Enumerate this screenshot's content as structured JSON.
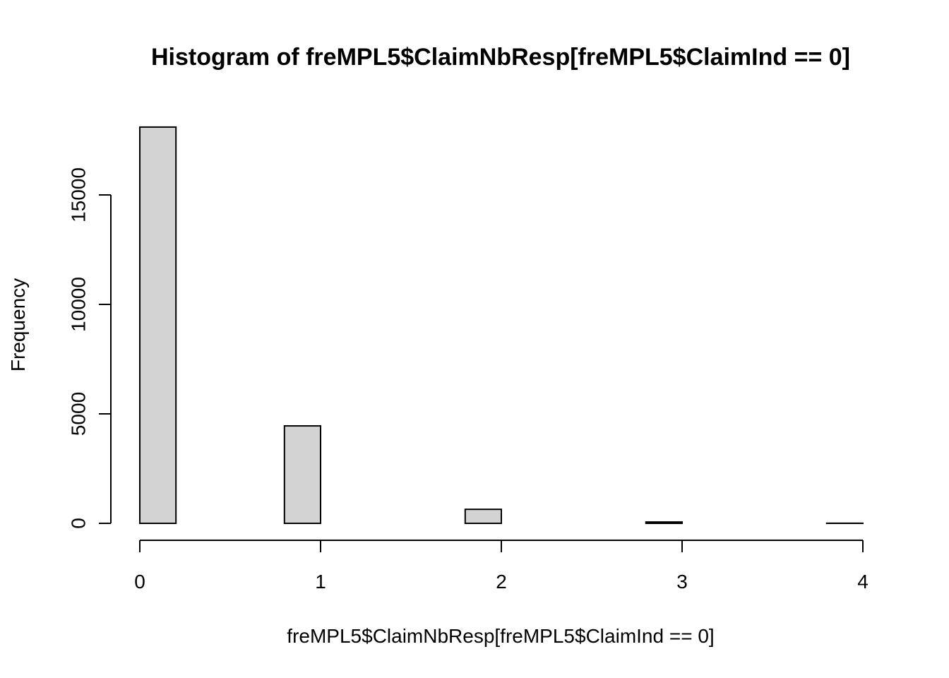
{
  "chart_data": {
    "type": "bar",
    "title": "Histogram of freMPL5$ClaimNbResp[freMPL5$ClaimInd == 0]",
    "xlabel": "freMPL5$ClaimNbResp[freMPL5$ClaimInd == 0]",
    "ylabel": "Frequency",
    "bins": [
      {
        "x0": 0.0,
        "x1": 0.2,
        "count": 18100
      },
      {
        "x0": 0.2,
        "x1": 0.4,
        "count": 0
      },
      {
        "x0": 0.4,
        "x1": 0.6,
        "count": 0
      },
      {
        "x0": 0.6,
        "x1": 0.8,
        "count": 0
      },
      {
        "x0": 0.8,
        "x1": 1.0,
        "count": 4450
      },
      {
        "x0": 1.0,
        "x1": 1.2,
        "count": 0
      },
      {
        "x0": 1.2,
        "x1": 1.4,
        "count": 0
      },
      {
        "x0": 1.4,
        "x1": 1.6,
        "count": 0
      },
      {
        "x0": 1.6,
        "x1": 1.8,
        "count": 0
      },
      {
        "x0": 1.8,
        "x1": 2.0,
        "count": 640
      },
      {
        "x0": 2.0,
        "x1": 2.2,
        "count": 0
      },
      {
        "x0": 2.2,
        "x1": 2.4,
        "count": 0
      },
      {
        "x0": 2.4,
        "x1": 2.6,
        "count": 0
      },
      {
        "x0": 2.6,
        "x1": 2.8,
        "count": 0
      },
      {
        "x0": 2.8,
        "x1": 3.0,
        "count": 60
      },
      {
        "x0": 3.0,
        "x1": 3.2,
        "count": 0
      },
      {
        "x0": 3.2,
        "x1": 3.4,
        "count": 0
      },
      {
        "x0": 3.4,
        "x1": 3.6,
        "count": 0
      },
      {
        "x0": 3.6,
        "x1": 3.8,
        "count": 0
      },
      {
        "x0": 3.8,
        "x1": 4.0,
        "count": 5
      }
    ],
    "xticks": [
      0,
      1,
      2,
      3,
      4
    ],
    "xtick_labels": [
      "0",
      "1",
      "2",
      "3",
      "4"
    ],
    "yticks": [
      0,
      5000,
      10000,
      15000
    ],
    "ytick_labels": [
      "0",
      "5000",
      "10000",
      "15000"
    ],
    "xlim": [
      0,
      4
    ],
    "ylim": [
      0,
      18100
    ],
    "grid": false,
    "bar_color": "#d3d3d3",
    "border_color": "#000000"
  }
}
